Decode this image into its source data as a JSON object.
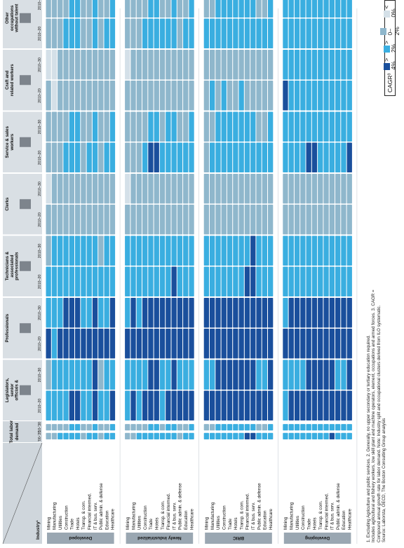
{
  "header": {
    "occupation_label": "Occupation",
    "industry_label": "Industry¹",
    "total_demand_label": "Total labor demand",
    "total_period_a": "'00-'20",
    "total_period_b": "'10-'30",
    "period_a": "2010–20",
    "period_b": "2010–30"
  },
  "occupations": [
    "Legislators, senior officials & managers",
    "Professionals",
    "Technicians & associated professionals",
    "Clerks",
    "Service & sales workers",
    "Craft and related workers",
    "Other occupations without talent focus²"
  ],
  "industries": [
    "Mining",
    "Manufacturing",
    "Utilities",
    "Construction",
    "Trade",
    "Hotels",
    "Transp. & com.",
    "Financial intermed.",
    "IT & bus. serv.",
    "Public admin. & defense",
    "Education",
    "Healthcare"
  ],
  "groups": [
    "Developed",
    "Newly industrialized",
    "BRIC",
    "Developing"
  ],
  "legend": {
    "title": "CAGR³",
    "items": [
      {
        "label": "> 4%",
        "color": "#1a4f9c"
      },
      {
        "label": "> 2%",
        "color": "#3aaee0"
      },
      {
        "label": "0–2%",
        "color": "#8fb7cc"
      },
      {
        "label": "< 0%",
        "color": "#d4e0e8"
      }
    ]
  },
  "footnotes": [
    "1. Excluding Agriculture and public services. 2. Generally, no upper secondary or tertiary education required.",
    "Includes agricultural and fishery workers, low skill plant and machine operators, element, occupations and armed forces. 3. CAGR =",
    "Compound annual growth rate for labor demand. Note: Industry split and occupational clusters derived from ILO systematic.",
    "Source: Laborsta, OECD, The Boston Consulting Group analysis"
  ],
  "chart_data": {
    "type": "heatmap",
    "rows": [
      "Developed: Mining",
      "Developed: Manufacturing",
      "Developed: Utilities",
      "Developed: Construction",
      "Developed: Trade",
      "Developed: Hotels",
      "Developed: Transp. & com.",
      "Developed: Financial intermed.",
      "Developed: IT & bus. serv.",
      "Developed: Public admin. & defense",
      "Developed: Education",
      "Developed: Healthcare",
      "Newly industrialized: Mining",
      "Newly industrialized: Manufacturing",
      "Newly industrialized: Utilities",
      "Newly industrialized: Construction",
      "Newly industrialized: Trade",
      "Newly industrialized: Hotels",
      "Newly industrialized: Transp. & com.",
      "Newly industrialized: Financial intermed.",
      "Newly industrialized: IT & bus. serv.",
      "Newly industrialized: Public admin. & defense",
      "Newly industrialized: Education",
      "Newly industrialized: Healthcare",
      "BRIC: Mining",
      "BRIC: Manufacturing",
      "BRIC: Utilities",
      "BRIC: Construction",
      "BRIC: Trade",
      "BRIC: Hotels",
      "BRIC: Transp. & com.",
      "BRIC: Financial intermed.",
      "BRIC: IT & bus. serv.",
      "BRIC: Public admin. & defense",
      "BRIC: Education",
      "BRIC: Healthcare",
      "Developing: Mining",
      "Developing: Manufacturing",
      "Developing: Utilities",
      "Developing: Construction",
      "Developing: Trade",
      "Developing: Hotels",
      "Developing: Transp. & com.",
      "Developing: Financial intermed.",
      "Developing: IT & bus. serv.",
      "Developing: Public admin. & defense",
      "Developing: Education",
      "Developing: Healthcare"
    ],
    "columns": [
      "Total labor demand '00-'20",
      "Total labor demand '10-'30",
      "Legislators 2010–20",
      "Legislators 2010–30",
      "Professionals 2010–20",
      "Professionals 2010–30",
      "Technicians 2010–20",
      "Technicians 2010–30",
      "Clerks 2010–20",
      "Clerks 2010–30",
      "Service & sales 2010–20",
      "Service & sales 2010–30",
      "Craft 2010–20",
      "Craft 2010–30",
      "Other 2010–20",
      "Other 2010–30"
    ],
    "levels": [
      "< 0%",
      "0–2%",
      "> 2%",
      "> 4%"
    ],
    "values": [
      [
        1,
        1,
        2,
        1,
        3,
        2,
        2,
        1,
        1,
        0,
        1,
        1,
        1,
        0,
        1,
        1
      ],
      [
        1,
        1,
        2,
        2,
        2,
        2,
        2,
        2,
        1,
        1,
        1,
        1,
        0,
        0,
        1,
        1
      ],
      [
        2,
        1,
        2,
        2,
        3,
        2,
        2,
        2,
        1,
        1,
        1,
        1,
        1,
        1,
        1,
        1
      ],
      [
        2,
        1,
        2,
        2,
        3,
        3,
        2,
        2,
        1,
        1,
        2,
        1,
        1,
        1,
        2,
        1
      ],
      [
        2,
        2,
        3,
        2,
        3,
        3,
        2,
        2,
        1,
        1,
        2,
        2,
        1,
        1,
        2,
        2
      ],
      [
        2,
        2,
        3,
        2,
        3,
        3,
        2,
        2,
        1,
        1,
        2,
        2,
        1,
        1,
        2,
        2
      ],
      [
        1,
        1,
        2,
        2,
        3,
        2,
        2,
        2,
        1,
        1,
        1,
        1,
        1,
        1,
        1,
        1
      ],
      [
        2,
        1,
        2,
        2,
        3,
        2,
        2,
        2,
        1,
        1,
        2,
        1,
        1,
        1,
        1,
        1
      ],
      [
        2,
        2,
        3,
        3,
        3,
        3,
        2,
        2,
        1,
        1,
        2,
        2,
        1,
        1,
        2,
        2
      ],
      [
        1,
        1,
        2,
        1,
        3,
        2,
        2,
        1,
        1,
        1,
        1,
        1,
        1,
        1,
        1,
        1
      ],
      [
        2,
        1,
        2,
        2,
        3,
        2,
        2,
        2,
        1,
        1,
        2,
        1,
        1,
        1,
        2,
        1
      ],
      [
        2,
        2,
        3,
        2,
        3,
        3,
        2,
        2,
        1,
        1,
        2,
        2,
        1,
        1,
        2,
        2
      ],
      [
        1,
        1,
        2,
        2,
        3,
        2,
        2,
        2,
        1,
        0,
        1,
        1,
        1,
        0,
        1,
        1
      ],
      [
        1,
        1,
        3,
        2,
        3,
        3,
        2,
        2,
        1,
        1,
        1,
        1,
        1,
        1,
        1,
        1
      ],
      [
        2,
        1,
        2,
        2,
        3,
        2,
        2,
        2,
        1,
        1,
        1,
        1,
        1,
        1,
        1,
        1
      ],
      [
        2,
        1,
        3,
        2,
        3,
        3,
        2,
        2,
        1,
        1,
        2,
        1,
        1,
        1,
        2,
        1
      ],
      [
        2,
        2,
        3,
        3,
        3,
        3,
        2,
        2,
        1,
        1,
        3,
        2,
        1,
        1,
        2,
        2
      ],
      [
        2,
        2,
        3,
        3,
        3,
        3,
        2,
        2,
        1,
        1,
        3,
        2,
        1,
        1,
        2,
        2
      ],
      [
        2,
        1,
        2,
        2,
        3,
        3,
        2,
        2,
        1,
        1,
        2,
        1,
        1,
        1,
        2,
        1
      ],
      [
        2,
        2,
        3,
        2,
        3,
        3,
        2,
        2,
        1,
        1,
        2,
        2,
        1,
        1,
        2,
        1
      ],
      [
        2,
        2,
        3,
        3,
        3,
        3,
        3,
        2,
        1,
        1,
        2,
        2,
        1,
        1,
        2,
        2
      ],
      [
        1,
        1,
        3,
        2,
        3,
        3,
        2,
        2,
        1,
        1,
        2,
        1,
        1,
        1,
        1,
        1
      ],
      [
        2,
        1,
        3,
        2,
        3,
        3,
        2,
        2,
        1,
        1,
        2,
        1,
        1,
        1,
        2,
        1
      ],
      [
        2,
        2,
        3,
        2,
        3,
        3,
        2,
        2,
        1,
        1,
        2,
        2,
        1,
        1,
        2,
        2
      ],
      [
        2,
        1,
        3,
        2,
        3,
        3,
        2,
        2,
        1,
        1,
        1,
        1,
        1,
        1,
        2,
        1
      ],
      [
        2,
        1,
        3,
        2,
        3,
        3,
        2,
        2,
        1,
        1,
        2,
        1,
        2,
        1,
        2,
        1
      ],
      [
        2,
        2,
        3,
        3,
        3,
        3,
        2,
        2,
        1,
        1,
        2,
        2,
        1,
        1,
        2,
        2
      ],
      [
        2,
        2,
        3,
        3,
        3,
        3,
        2,
        2,
        1,
        1,
        2,
        2,
        2,
        1,
        2,
        2
      ],
      [
        2,
        2,
        3,
        3,
        3,
        3,
        2,
        2,
        1,
        1,
        2,
        2,
        1,
        1,
        2,
        2
      ],
      [
        2,
        2,
        3,
        3,
        3,
        3,
        2,
        2,
        1,
        1,
        2,
        2,
        1,
        1,
        2,
        2
      ],
      [
        2,
        2,
        3,
        3,
        3,
        3,
        2,
        2,
        1,
        1,
        2,
        2,
        2,
        1,
        2,
        2
      ],
      [
        3,
        2,
        3,
        3,
        3,
        3,
        3,
        2,
        1,
        1,
        2,
        2,
        1,
        1,
        2,
        2
      ],
      [
        3,
        2,
        3,
        3,
        3,
        3,
        3,
        3,
        1,
        1,
        2,
        2,
        1,
        1,
        2,
        2
      ],
      [
        2,
        1,
        3,
        2,
        3,
        3,
        2,
        2,
        1,
        1,
        2,
        1,
        1,
        1,
        2,
        1
      ],
      [
        2,
        1,
        3,
        2,
        3,
        3,
        2,
        2,
        1,
        1,
        2,
        1,
        1,
        1,
        2,
        1
      ],
      [
        2,
        2,
        3,
        3,
        3,
        3,
        2,
        2,
        1,
        1,
        2,
        2,
        1,
        1,
        2,
        2
      ],
      [
        2,
        2,
        2,
        2,
        3,
        2,
        2,
        2,
        1,
        1,
        2,
        2,
        3,
        2,
        2,
        2
      ],
      [
        2,
        2,
        3,
        2,
        3,
        3,
        2,
        2,
        1,
        1,
        2,
        2,
        2,
        2,
        2,
        2
      ],
      [
        2,
        2,
        3,
        2,
        3,
        3,
        2,
        2,
        1,
        1,
        2,
        2,
        2,
        2,
        2,
        2
      ],
      [
        2,
        2,
        3,
        2,
        3,
        3,
        2,
        2,
        1,
        1,
        2,
        2,
        2,
        2,
        2,
        2
      ],
      [
        2,
        2,
        3,
        3,
        3,
        3,
        2,
        2,
        1,
        1,
        3,
        2,
        2,
        2,
        2,
        2
      ],
      [
        2,
        2,
        3,
        3,
        3,
        3,
        2,
        2,
        1,
        1,
        3,
        2,
        2,
        2,
        2,
        2
      ],
      [
        2,
        2,
        3,
        3,
        3,
        3,
        2,
        2,
        1,
        1,
        2,
        2,
        2,
        2,
        2,
        2
      ],
      [
        2,
        2,
        3,
        3,
        3,
        3,
        2,
        2,
        1,
        1,
        2,
        2,
        2,
        2,
        2,
        2
      ],
      [
        3,
        2,
        3,
        3,
        3,
        3,
        2,
        2,
        1,
        1,
        2,
        2,
        2,
        2,
        2,
        2
      ],
      [
        2,
        2,
        3,
        2,
        3,
        3,
        2,
        2,
        1,
        1,
        2,
        2,
        2,
        2,
        2,
        2
      ],
      [
        2,
        2,
        3,
        2,
        3,
        3,
        2,
        2,
        1,
        1,
        2,
        2,
        2,
        2,
        2,
        2
      ],
      [
        2,
        2,
        3,
        3,
        3,
        3,
        2,
        2,
        1,
        1,
        3,
        2,
        2,
        2,
        2,
        2
      ]
    ]
  }
}
